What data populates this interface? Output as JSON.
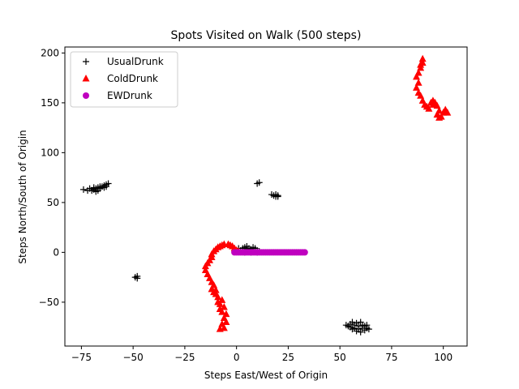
{
  "chart_data": {
    "type": "scatter",
    "title": "Spots Visited on Walk (500 steps)",
    "xlabel": "Steps East/West of Origin",
    "ylabel": "Steps North/South of Origin",
    "xlim": [
      -83,
      111.5
    ],
    "ylim": [
      -94,
      206
    ],
    "xticks": [
      -75,
      -50,
      -25,
      0,
      25,
      50,
      75,
      100
    ],
    "yticks": [
      -50,
      0,
      50,
      100,
      150,
      200
    ],
    "grid": false,
    "legend_position": "top-left",
    "series": [
      {
        "name": "UsualDrunk",
        "marker": "plus",
        "color": "#000000",
        "points": [
          [
            -74,
            63
          ],
          [
            -72,
            62
          ],
          [
            -71,
            64
          ],
          [
            -70,
            62
          ],
          [
            -69,
            63
          ],
          [
            -69,
            65
          ],
          [
            -68,
            61
          ],
          [
            -68,
            64
          ],
          [
            -67,
            65
          ],
          [
            -67,
            62
          ],
          [
            -66,
            64
          ],
          [
            -66,
            66
          ],
          [
            -65,
            66
          ],
          [
            -64,
            67
          ],
          [
            -64,
            65
          ],
          [
            -63,
            68
          ],
          [
            -62,
            69
          ],
          [
            -63,
            66
          ],
          [
            -49,
            -25
          ],
          [
            -48,
            -24
          ],
          [
            -48,
            -26
          ],
          [
            11,
            70
          ],
          [
            10,
            69
          ],
          [
            17,
            58
          ],
          [
            18,
            57
          ],
          [
            19,
            58
          ],
          [
            20,
            57
          ],
          [
            20,
            56
          ],
          [
            19,
            56
          ],
          [
            1,
            4
          ],
          [
            2,
            2
          ],
          [
            3,
            1
          ],
          [
            3,
            4
          ],
          [
            4,
            5
          ],
          [
            4,
            0
          ],
          [
            5,
            3
          ],
          [
            5,
            6
          ],
          [
            6,
            1
          ],
          [
            6,
            4
          ],
          [
            7,
            3
          ],
          [
            7,
            0
          ],
          [
            8,
            2
          ],
          [
            8,
            5
          ],
          [
            9,
            1
          ],
          [
            9,
            4
          ],
          [
            10,
            2
          ],
          [
            10,
            0
          ],
          [
            11,
            1
          ],
          [
            53,
            -73
          ],
          [
            54,
            -74
          ],
          [
            55,
            -72
          ],
          [
            55,
            -75
          ],
          [
            56,
            -70
          ],
          [
            56,
            -77
          ],
          [
            57,
            -73
          ],
          [
            57,
            -76
          ],
          [
            58,
            -71
          ],
          [
            58,
            -79
          ],
          [
            59,
            -74
          ],
          [
            59,
            -77
          ],
          [
            60,
            -70
          ],
          [
            60,
            -80
          ],
          [
            61,
            -73
          ],
          [
            61,
            -76
          ],
          [
            62,
            -78
          ],
          [
            63,
            -76
          ],
          [
            64,
            -77
          ],
          [
            63,
            -73
          ],
          [
            62,
            -74
          ]
        ]
      },
      {
        "name": "ColdDrunk",
        "marker": "triangle",
        "color": "#ff0000",
        "points": [
          [
            -8,
            -77
          ],
          [
            -7,
            -72
          ],
          [
            -6,
            -76
          ],
          [
            -5,
            -70
          ],
          [
            -6,
            -66
          ],
          [
            -5,
            -62
          ],
          [
            -7,
            -60
          ],
          [
            -6,
            -55
          ],
          [
            -8,
            -52
          ],
          [
            -7,
            -48
          ],
          [
            -9,
            -45
          ],
          [
            -10,
            -42
          ],
          [
            -11,
            -40
          ],
          [
            -12,
            -37
          ],
          [
            -11,
            -33
          ],
          [
            -12,
            -30
          ],
          [
            -13,
            -26
          ],
          [
            -14,
            -22
          ],
          [
            -15,
            -18
          ],
          [
            -15,
            -14
          ],
          [
            -14,
            -11
          ],
          [
            -13,
            -8
          ],
          [
            -12,
            -5
          ],
          [
            -12,
            -2
          ],
          [
            -11,
            1
          ],
          [
            -10,
            3
          ],
          [
            -9,
            5
          ],
          [
            -8,
            6
          ],
          [
            -7,
            7
          ],
          [
            -6,
            8
          ],
          [
            -4,
            8
          ],
          [
            -3,
            7
          ],
          [
            -2,
            6
          ],
          [
            -1,
            4
          ],
          [
            0,
            2
          ],
          [
            1,
            1
          ],
          [
            -10,
            -38
          ],
          [
            -9,
            -50
          ],
          [
            -8,
            -57
          ],
          [
            87,
            176
          ],
          [
            88,
            180
          ],
          [
            89,
            185
          ],
          [
            90,
            190
          ],
          [
            90,
            194
          ],
          [
            89,
            188
          ],
          [
            88,
            170
          ],
          [
            87,
            165
          ],
          [
            88,
            160
          ],
          [
            89,
            157
          ],
          [
            90,
            152
          ],
          [
            91,
            148
          ],
          [
            92,
            146
          ],
          [
            93,
            144
          ],
          [
            94,
            150
          ],
          [
            95,
            152
          ],
          [
            96,
            150
          ],
          [
            97,
            147
          ],
          [
            98,
            142
          ],
          [
            97,
            138
          ],
          [
            98,
            135
          ],
          [
            99,
            136
          ],
          [
            100,
            140
          ],
          [
            101,
            143
          ],
          [
            102,
            140
          ],
          [
            95,
            148
          ]
        ]
      },
      {
        "name": "EWDrunk",
        "marker": "circle",
        "color": "#bf00bf",
        "points": [
          [
            -1,
            0
          ],
          [
            0,
            0
          ],
          [
            1,
            0
          ],
          [
            2,
            0
          ],
          [
            3,
            0
          ],
          [
            4,
            0
          ],
          [
            5,
            0
          ],
          [
            6,
            0
          ],
          [
            7,
            0
          ],
          [
            8,
            0
          ],
          [
            9,
            0
          ],
          [
            10,
            0
          ],
          [
            11,
            0
          ],
          [
            12,
            0
          ],
          [
            13,
            0
          ],
          [
            14,
            0
          ],
          [
            15,
            0
          ],
          [
            16,
            0
          ],
          [
            17,
            0
          ],
          [
            18,
            0
          ],
          [
            19,
            0
          ],
          [
            20,
            0
          ],
          [
            21,
            0
          ],
          [
            22,
            0
          ],
          [
            23,
            0
          ],
          [
            24,
            0
          ],
          [
            25,
            0
          ],
          [
            26,
            0
          ],
          [
            27,
            0
          ],
          [
            28,
            0
          ],
          [
            29,
            0
          ],
          [
            30,
            0
          ],
          [
            31,
            0
          ],
          [
            32,
            0
          ],
          [
            33,
            0
          ]
        ]
      }
    ]
  }
}
